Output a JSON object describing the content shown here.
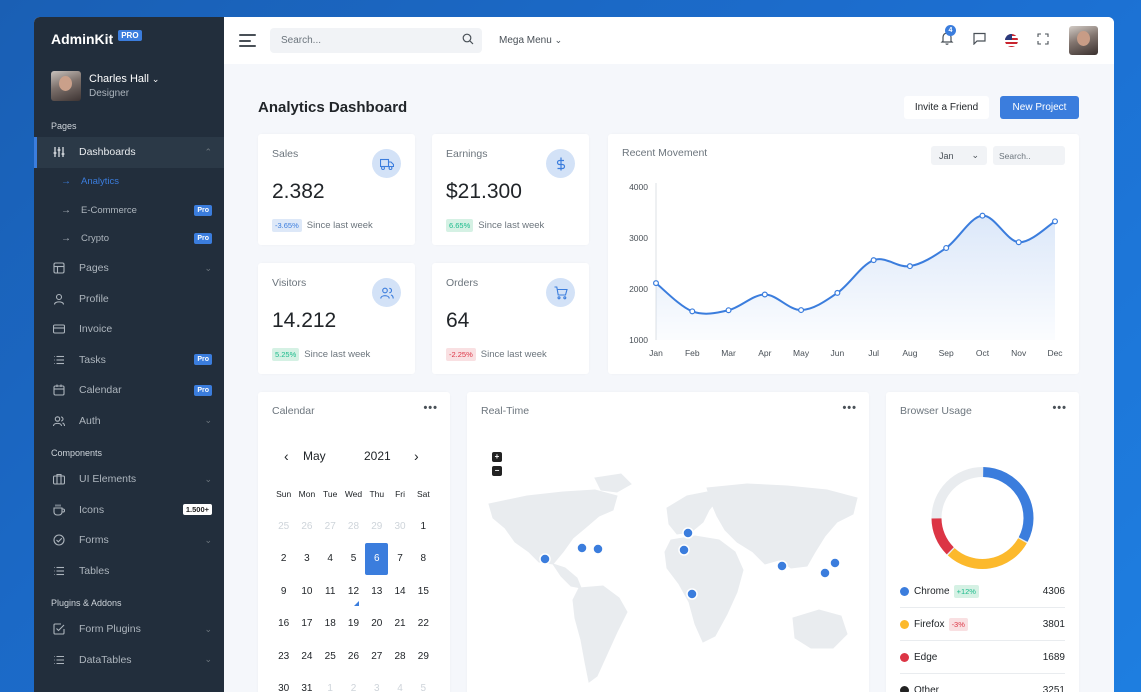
{
  "brand": {
    "name": "AdminKit",
    "badge": "PRO"
  },
  "user": {
    "name": "Charles Hall",
    "role": "Designer"
  },
  "sidebar": {
    "sections": [
      "Pages",
      "Components",
      "Plugins & Addons"
    ],
    "pages": [
      {
        "label": "Dashboards",
        "icon": "sliders-icon",
        "active": true
      },
      {
        "label": "Pages",
        "icon": "layout-icon"
      },
      {
        "label": "Profile",
        "icon": "user-icon"
      },
      {
        "label": "Invoice",
        "icon": "credit-card-icon"
      },
      {
        "label": "Tasks",
        "icon": "list-icon",
        "badge": "Pro"
      },
      {
        "label": "Calendar",
        "icon": "calendar-icon",
        "badge": "Pro"
      },
      {
        "label": "Auth",
        "icon": "users-icon"
      }
    ],
    "dashboards_sub": [
      {
        "label": "Analytics",
        "active": true
      },
      {
        "label": "E-Commerce",
        "badge": "Pro"
      },
      {
        "label": "Crypto",
        "badge": "Pro"
      }
    ],
    "components": [
      {
        "label": "UI Elements",
        "icon": "briefcase-icon"
      },
      {
        "label": "Icons",
        "icon": "coffee-icon",
        "badge": "1.500+"
      },
      {
        "label": "Forms",
        "icon": "check-circle-icon"
      },
      {
        "label": "Tables",
        "icon": "list-icon"
      }
    ],
    "plugins": [
      {
        "label": "Form Plugins",
        "icon": "check-square-icon"
      },
      {
        "label": "DataTables",
        "icon": "list-icon"
      }
    ]
  },
  "topbar": {
    "search_placeholder": "Search...",
    "mega_menu": "Mega Menu",
    "notifications_count": "4"
  },
  "page": {
    "title_bold": "Analytics",
    "title_rest": " Dashboard",
    "invite_label": "Invite a Friend",
    "new_project_label": "New Project"
  },
  "stats": [
    {
      "title": "Sales",
      "value": "2.382",
      "pct": "-3.65%",
      "trend": "neg",
      "note": "Since last week",
      "icon": "truck-icon"
    },
    {
      "title": "Earnings",
      "value": "$21.300",
      "pct": "6.65%",
      "trend": "pos",
      "note": "Since last week",
      "icon": "dollar-icon"
    },
    {
      "title": "Visitors",
      "value": "14.212",
      "pct": "5.25%",
      "trend": "pos",
      "note": "Since last week",
      "icon": "users-icon"
    },
    {
      "title": "Orders",
      "value": "64",
      "pct": "-2.25%",
      "trend": "neg",
      "note": "Since last week",
      "icon": "cart-icon"
    }
  ],
  "recent_movement": {
    "title": "Recent Movement",
    "month": "Jan",
    "search_placeholder": "Search.."
  },
  "chart_data": {
    "type": "area",
    "title": "Recent Movement",
    "categories": [
      "Jan",
      "Feb",
      "Mar",
      "Apr",
      "May",
      "Jun",
      "Jul",
      "Aug",
      "Sep",
      "Oct",
      "Nov",
      "Dec"
    ],
    "series": [
      {
        "values": [
          2115,
          1562,
          1584,
          1892,
          1587,
          1923,
          2566,
          2448,
          2805,
          3438,
          2917,
          3327
        ]
      }
    ],
    "yticks": [
      1000,
      2000,
      3000,
      4000
    ],
    "ylim": [
      1000,
      4000
    ],
    "color": "#3b7ddd"
  },
  "calendar": {
    "title": "Calendar",
    "month": "May",
    "year": "2021",
    "dow": [
      "Sun",
      "Mon",
      "Tue",
      "Wed",
      "Thu",
      "Fri",
      "Sat"
    ],
    "weeks": [
      [
        {
          "d": "25",
          "m": true
        },
        {
          "d": "26",
          "m": true
        },
        {
          "d": "27",
          "m": true
        },
        {
          "d": "28",
          "m": true
        },
        {
          "d": "29",
          "m": true
        },
        {
          "d": "30",
          "m": true
        },
        {
          "d": "1"
        }
      ],
      [
        {
          "d": "2"
        },
        {
          "d": "3"
        },
        {
          "d": "4"
        },
        {
          "d": "5"
        },
        {
          "d": "6",
          "sel": true
        },
        {
          "d": "7"
        },
        {
          "d": "8"
        }
      ],
      [
        {
          "d": "9"
        },
        {
          "d": "10"
        },
        {
          "d": "11"
        },
        {
          "d": "12",
          "today": true
        },
        {
          "d": "13"
        },
        {
          "d": "14"
        },
        {
          "d": "15"
        }
      ],
      [
        {
          "d": "16"
        },
        {
          "d": "17"
        },
        {
          "d": "18"
        },
        {
          "d": "19"
        },
        {
          "d": "20"
        },
        {
          "d": "21"
        },
        {
          "d": "22"
        }
      ],
      [
        {
          "d": "23"
        },
        {
          "d": "24"
        },
        {
          "d": "25"
        },
        {
          "d": "26"
        },
        {
          "d": "27"
        },
        {
          "d": "28"
        },
        {
          "d": "29"
        }
      ],
      [
        {
          "d": "30"
        },
        {
          "d": "31"
        },
        {
          "d": "1",
          "m": true
        },
        {
          "d": "2",
          "m": true
        },
        {
          "d": "3",
          "m": true
        },
        {
          "d": "4",
          "m": true
        },
        {
          "d": "5",
          "m": true
        }
      ]
    ]
  },
  "realtime": {
    "title": "Real-Time",
    "zoom_in": "+",
    "zoom_out": "−"
  },
  "browser_usage": {
    "title": "Browser Usage",
    "items": [
      {
        "name": "Chrome",
        "pct": "+12%",
        "trend": "pos",
        "value": "4306",
        "color": "#3b7ddd"
      },
      {
        "name": "Firefox",
        "pct": "-3%",
        "trend": "neg",
        "value": "3801",
        "color": "#fcb92c"
      },
      {
        "name": "Edge",
        "pct": "",
        "trend": "",
        "value": "1689",
        "color": "#dc3545"
      },
      {
        "name": "Other",
        "pct": "",
        "trend": "",
        "value": "3251",
        "color": "#222"
      }
    ]
  },
  "colors": {
    "accent": "#3b7ddd",
    "sidebar": "#222e3c",
    "success": "#1cbb8c",
    "danger": "#dc3545",
    "warning": "#fcb92c"
  }
}
